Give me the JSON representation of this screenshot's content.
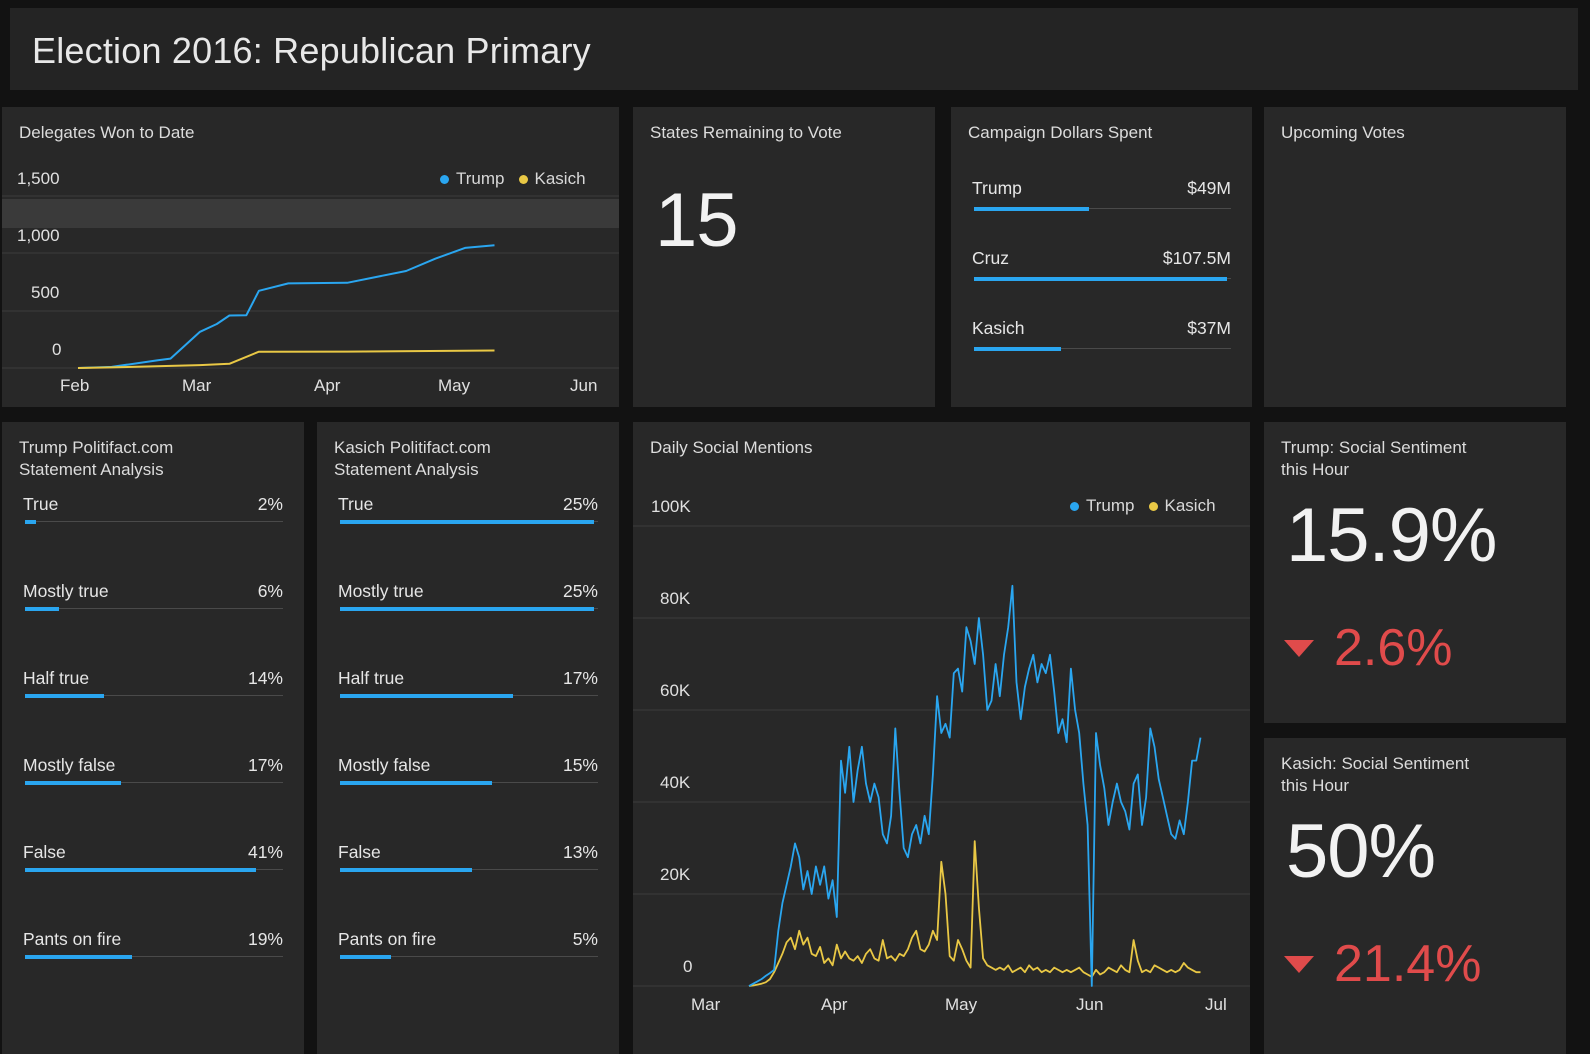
{
  "header": {
    "title": "Election 2016: Republican Primary"
  },
  "colors": {
    "trump": "#2aa6f0",
    "kasich": "#e9c845",
    "negative": "#e04b4b"
  },
  "delegates": {
    "title": "Delegates Won to Date",
    "yticks": [
      "1,500",
      "1,000",
      "500",
      "0"
    ],
    "xticks": [
      "Feb",
      "Mar",
      "Apr",
      "May",
      "Jun"
    ],
    "legend": [
      {
        "label": "Trump"
      },
      {
        "label": "Kasich"
      }
    ]
  },
  "states": {
    "title": "States Remaining to Vote",
    "value": "15"
  },
  "dollars": {
    "title": "Campaign Dollars Spent",
    "rows": [
      {
        "label": "Trump",
        "value": "$49M",
        "fraction": 0.455
      },
      {
        "label": "Cruz",
        "value": "$107.5M",
        "fraction": 1.0
      },
      {
        "label": "Kasich",
        "value": "$37M",
        "fraction": 0.344
      }
    ]
  },
  "upcoming": {
    "title": "Upcoming Votes"
  },
  "trump_politifact": {
    "title_line1": "Trump Politifact.com",
    "title_line2": "Statement Analysis",
    "rows": [
      {
        "label": "True",
        "value": "2%",
        "percent": 2
      },
      {
        "label": "Mostly true",
        "value": "6%",
        "percent": 6
      },
      {
        "label": "Half true",
        "value": "14%",
        "percent": 14
      },
      {
        "label": "Mostly false",
        "value": "17%",
        "percent": 17
      },
      {
        "label": "False",
        "value": "41%",
        "percent": 41
      },
      {
        "label": "Pants on fire",
        "value": "19%",
        "percent": 19
      }
    ]
  },
  "kasich_politifact": {
    "title_line1": "Kasich Politifact.com",
    "title_line2": "Statement Analysis",
    "rows": [
      {
        "label": "True",
        "value": "25%",
        "percent": 25
      },
      {
        "label": "Mostly true",
        "value": "25%",
        "percent": 25
      },
      {
        "label": "Half true",
        "value": "17%",
        "percent": 17
      },
      {
        "label": "Mostly false",
        "value": "15%",
        "percent": 15
      },
      {
        "label": "False",
        "value": "13%",
        "percent": 13
      },
      {
        "label": "Pants on fire",
        "value": "5%",
        "percent": 5
      }
    ]
  },
  "mentions": {
    "title": "Daily Social Mentions",
    "yticks": [
      "100K",
      "80K",
      "60K",
      "40K",
      "20K",
      "0"
    ],
    "xticks": [
      "Mar",
      "Apr",
      "May",
      "Jun",
      "Jul"
    ],
    "legend": [
      {
        "label": "Trump"
      },
      {
        "label": "Kasich"
      }
    ]
  },
  "trump_sentiment": {
    "title_line1": "Trump: Social Sentiment",
    "title_line2": "this Hour",
    "value": "15.9%",
    "delta": "2.6%"
  },
  "kasich_sentiment": {
    "title_line1": "Kasich: Social Sentiment",
    "title_line2": "this Hour",
    "value": "50%",
    "delta": "21.4%"
  },
  "chart_data": [
    {
      "type": "line",
      "title": "Delegates Won to Date",
      "x_ticks": [
        "Feb",
        "Mar",
        "Apr",
        "May",
        "Jun"
      ],
      "ylim": [
        0,
        1500
      ],
      "legend_position": "top-right",
      "series": [
        {
          "name": "Trump",
          "x": [
            "2016-02-01",
            "2016-02-09",
            "2016-02-20",
            "2016-02-23",
            "2016-03-01",
            "2016-03-05",
            "2016-03-08",
            "2016-03-12",
            "2016-03-15",
            "2016-03-22",
            "2016-04-05",
            "2016-04-19",
            "2016-04-26",
            "2016-05-03",
            "2016-05-10"
          ],
          "y": [
            0,
            10,
            67,
            82,
            316,
            384,
            458,
            460,
            673,
            738,
            743,
            846,
            954,
            1047,
            1070
          ]
        },
        {
          "name": "Kasich",
          "x": [
            "2016-02-01",
            "2016-02-09",
            "2016-03-01",
            "2016-03-08",
            "2016-03-15",
            "2016-04-05",
            "2016-05-10"
          ],
          "y": [
            0,
            5,
            25,
            37,
            142,
            143,
            153
          ]
        }
      ]
    },
    {
      "type": "line",
      "title": "Daily Social Mentions",
      "x_ticks": [
        "Mar",
        "Apr",
        "May",
        "Jun",
        "Jul"
      ],
      "ylim": [
        0,
        100000
      ],
      "legend_position": "top-right",
      "series": [
        {
          "name": "Trump",
          "start": "2016-03-01",
          "values": [
            0,
            500,
            1000,
            1500,
            2200,
            2800,
            3500,
            12000,
            18000,
            22000,
            26000,
            31000,
            28000,
            21000,
            25000,
            20000,
            26000,
            22000,
            26000,
            19000,
            23000,
            15000,
            49000,
            42000,
            52000,
            40000,
            47000,
            52000,
            44000,
            40000,
            44000,
            41000,
            33000,
            31000,
            37000,
            56000,
            42000,
            30000,
            28000,
            33000,
            35000,
            31000,
            37000,
            33000,
            46000,
            63000,
            55000,
            57000,
            54000,
            68000,
            69000,
            64000,
            78000,
            75000,
            70000,
            80000,
            72000,
            60000,
            62000,
            70000,
            63000,
            72000,
            78000,
            87000,
            66000,
            58000,
            65000,
            69000,
            72000,
            66000,
            70000,
            68000,
            72000,
            64000,
            55000,
            58000,
            53000,
            69000,
            60000,
            55000,
            44000,
            35000,
            0,
            55000,
            48000,
            43000,
            35000,
            40000,
            44000,
            40000,
            38000,
            34000,
            44000,
            46000,
            35000,
            41000,
            56000,
            52000,
            45000,
            41000,
            37000,
            33000,
            32000,
            36000,
            33000,
            40000,
            49000,
            49000,
            54000
          ]
        },
        {
          "name": "Kasich",
          "start": "2016-03-01",
          "values": [
            0,
            100,
            300,
            500,
            800,
            1500,
            3000,
            5000,
            7000,
            9500,
            10500,
            8000,
            12000,
            9000,
            10500,
            7000,
            6500,
            8500,
            5000,
            6000,
            4500,
            9000,
            6000,
            7500,
            6000,
            5500,
            6500,
            5000,
            7000,
            8000,
            6000,
            5500,
            10000,
            6000,
            6500,
            5500,
            7000,
            6500,
            8000,
            10500,
            12000,
            8000,
            7500,
            9000,
            12000,
            10000,
            27000,
            20000,
            6500,
            5500,
            10000,
            8000,
            5500,
            4000,
            31500,
            17000,
            6000,
            4500,
            4000,
            3500,
            4000,
            3500,
            4500,
            3000,
            3500,
            4000,
            3000,
            4500,
            3500,
            4000,
            3000,
            3500,
            3000,
            4000,
            3500,
            3000,
            3500,
            3000,
            3500,
            4000,
            3000,
            2500,
            2000,
            3500,
            2500,
            3000,
            4000,
            3500,
            3000,
            4500,
            3500,
            3000,
            10000,
            5500,
            3000,
            3500,
            3000,
            4500,
            4000,
            3500,
            3000,
            3500,
            3000,
            3500,
            5000,
            4000,
            3500,
            3000,
            3000
          ]
        }
      ]
    }
  ]
}
